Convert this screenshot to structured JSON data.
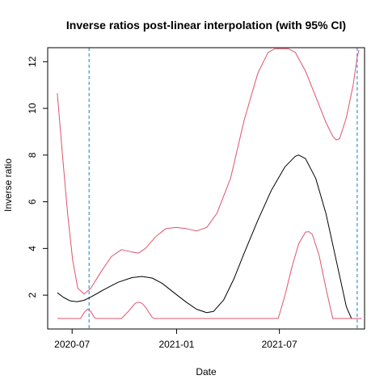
{
  "chart_data": {
    "type": "line",
    "title": "Inverse ratios post-linear interpolation (with 95% CI)",
    "xlabel": "Date",
    "ylabel": "Inverse ratio",
    "xlim": [
      "2020-05-19",
      "2021-11-28"
    ],
    "ylim": [
      0.55,
      12.6
    ],
    "x_ticks": [
      {
        "date": "2020-07-01",
        "label": "2020-07"
      },
      {
        "date": "2021-01-01",
        "label": "2021-01"
      },
      {
        "date": "2021-07-01",
        "label": "2021-07"
      }
    ],
    "y_ticks": [
      2,
      4,
      6,
      8,
      10,
      12
    ],
    "grid": false,
    "legend": "none",
    "vlines": [
      {
        "date": "2020-07-31",
        "color": "#5aa9e6",
        "style": "dashed"
      },
      {
        "date": "2021-11-15",
        "color": "#5aa9e6",
        "style": "dashed"
      }
    ],
    "series": [
      {
        "role": "estimate",
        "color": "#000000",
        "points": [
          [
            "2020-06-05",
            2.1
          ],
          [
            "2020-06-16",
            1.9
          ],
          [
            "2020-06-28",
            1.75
          ],
          [
            "2020-07-10",
            1.72
          ],
          [
            "2020-07-22",
            1.78
          ],
          [
            "2020-08-03",
            1.92
          ],
          [
            "2020-08-27",
            2.25
          ],
          [
            "2020-09-20",
            2.55
          ],
          [
            "2020-10-14",
            2.75
          ],
          [
            "2020-11-01",
            2.8
          ],
          [
            "2020-11-19",
            2.73
          ],
          [
            "2020-12-07",
            2.5
          ],
          [
            "2020-12-25",
            2.15
          ],
          [
            "2021-01-18",
            1.7
          ],
          [
            "2021-02-05",
            1.4
          ],
          [
            "2021-02-23",
            1.25
          ],
          [
            "2021-03-07",
            1.3
          ],
          [
            "2021-03-25",
            1.8
          ],
          [
            "2021-04-12",
            2.7
          ],
          [
            "2021-04-30",
            3.8
          ],
          [
            "2021-05-24",
            5.2
          ],
          [
            "2021-06-17",
            6.5
          ],
          [
            "2021-07-11",
            7.5
          ],
          [
            "2021-07-29",
            7.95
          ],
          [
            "2021-08-04",
            8.0
          ],
          [
            "2021-08-16",
            7.85
          ],
          [
            "2021-09-03",
            7.0
          ],
          [
            "2021-09-21",
            5.5
          ],
          [
            "2021-10-09",
            3.5
          ],
          [
            "2021-10-27",
            1.5
          ],
          [
            "2021-11-05",
            1.0
          ],
          [
            "2021-11-23",
            1.0
          ]
        ]
      },
      {
        "role": "upper-ci",
        "color": "#df536b",
        "points": [
          [
            "2020-06-05",
            10.65
          ],
          [
            "2020-06-14",
            8.0
          ],
          [
            "2020-06-23",
            5.5
          ],
          [
            "2020-07-02",
            3.5
          ],
          [
            "2020-07-11",
            2.3
          ],
          [
            "2020-07-22",
            2.05
          ],
          [
            "2020-08-03",
            2.3
          ],
          [
            "2020-08-21",
            3.0
          ],
          [
            "2020-09-08",
            3.65
          ],
          [
            "2020-09-26",
            3.95
          ],
          [
            "2020-10-14",
            3.85
          ],
          [
            "2020-10-26",
            3.8
          ],
          [
            "2020-11-07",
            4.0
          ],
          [
            "2020-11-25",
            4.5
          ],
          [
            "2020-12-13",
            4.85
          ],
          [
            "2020-12-31",
            4.9
          ],
          [
            "2021-01-18",
            4.85
          ],
          [
            "2021-02-05",
            4.75
          ],
          [
            "2021-02-23",
            4.9
          ],
          [
            "2021-03-13",
            5.5
          ],
          [
            "2021-04-06",
            7.0
          ],
          [
            "2021-04-30",
            9.5
          ],
          [
            "2021-05-24",
            11.5
          ],
          [
            "2021-06-11",
            12.4
          ],
          [
            "2021-06-23",
            12.55
          ],
          [
            "2021-07-17",
            12.55
          ],
          [
            "2021-07-29",
            12.4
          ],
          [
            "2021-08-16",
            11.6
          ],
          [
            "2021-09-03",
            10.5
          ],
          [
            "2021-09-21",
            9.4
          ],
          [
            "2021-10-03",
            8.8
          ],
          [
            "2021-10-09",
            8.65
          ],
          [
            "2021-10-15",
            8.7
          ],
          [
            "2021-10-27",
            9.6
          ],
          [
            "2021-11-08",
            11.0
          ],
          [
            "2021-11-15",
            12.2
          ],
          [
            "2021-11-18",
            12.5
          ]
        ]
      },
      {
        "role": "lower-ci",
        "color": "#df536b",
        "points": [
          [
            "2020-06-05",
            1.0
          ],
          [
            "2020-07-16",
            1.0
          ],
          [
            "2020-07-22",
            1.25
          ],
          [
            "2020-07-28",
            1.4
          ],
          [
            "2020-08-03",
            1.3
          ],
          [
            "2020-08-09",
            1.05
          ],
          [
            "2020-08-12",
            1.0
          ],
          [
            "2020-09-26",
            1.0
          ],
          [
            "2020-10-08",
            1.3
          ],
          [
            "2020-10-20",
            1.65
          ],
          [
            "2020-10-26",
            1.7
          ],
          [
            "2020-11-01",
            1.65
          ],
          [
            "2020-11-07",
            1.5
          ],
          [
            "2020-11-19",
            1.05
          ],
          [
            "2020-11-22",
            1.0
          ],
          [
            "2021-06-17",
            1.0
          ],
          [
            "2021-06-29",
            1.0
          ],
          [
            "2021-07-11",
            2.0
          ],
          [
            "2021-07-23",
            3.2
          ],
          [
            "2021-08-04",
            4.2
          ],
          [
            "2021-08-16",
            4.7
          ],
          [
            "2021-08-22",
            4.72
          ],
          [
            "2021-08-28",
            4.6
          ],
          [
            "2021-09-09",
            3.7
          ],
          [
            "2021-09-21",
            2.3
          ],
          [
            "2021-10-03",
            1.0
          ],
          [
            "2021-11-23",
            1.0
          ]
        ]
      }
    ]
  }
}
